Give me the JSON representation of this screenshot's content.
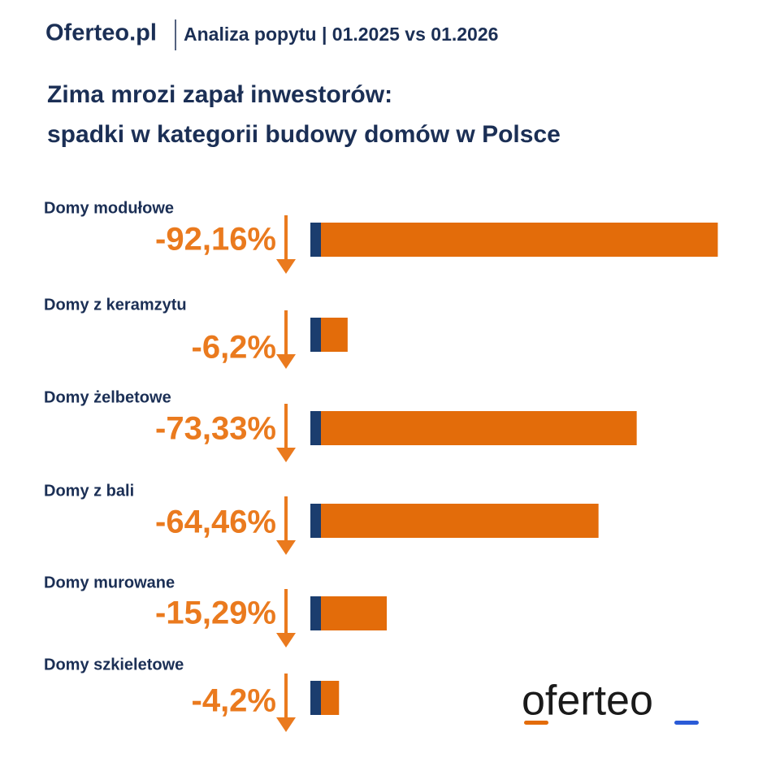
{
  "header": {
    "brand": "Oferteo.pl",
    "subtitle": "Analiza popytu | 01.2025 vs 01.2026"
  },
  "chart_data": {
    "type": "bar",
    "title": [
      "Zima mrozi zapał inwestorów:",
      "spadki w kategorii budowy domów w Polsce"
    ],
    "categories": [
      "Domy modułowe",
      "Domy z keramzytu",
      "Domy żelbetowe",
      "Domy z bali",
      "Domy murowane",
      "Domy szkieletowe"
    ],
    "values": [
      -92.16,
      -6.2,
      -73.33,
      -64.46,
      -15.29,
      -4.2
    ],
    "value_labels": [
      "-92,16%",
      "-6,2%",
      "-73,33%",
      "-64,46%",
      "-15,29%",
      "-4,2%"
    ],
    "color": "#e36c0a",
    "accent_color": "#1b3d6e",
    "label_color": "#ea7a1e"
  },
  "logo": "oferteo"
}
